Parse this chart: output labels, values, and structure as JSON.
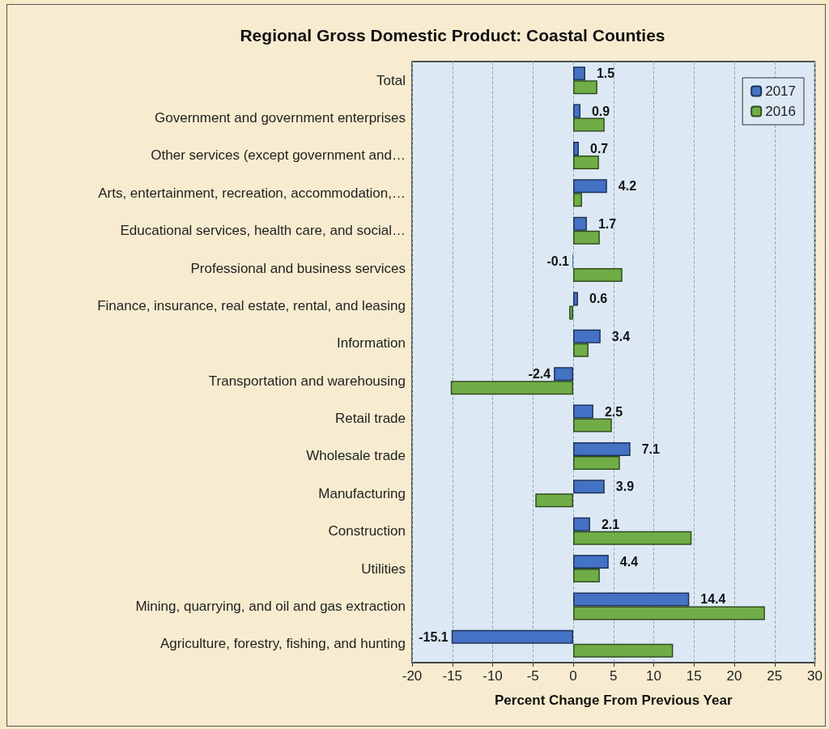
{
  "chart_data": {
    "type": "bar",
    "orientation": "horizontal",
    "title": "Regional Gross Domestic Product: Coastal Counties",
    "xlabel": "Percent Change From Previous Year",
    "categories": [
      "Total",
      "Government and government enterprises",
      "Other services (except government and…",
      "Arts, entertainment, recreation, accommodation,…",
      "Educational services, health care, and social…",
      "Professional and business services",
      "Finance, insurance, real estate, rental, and leasing",
      "Information",
      "Transportation and warehousing",
      "Retail trade",
      "Wholesale trade",
      "Manufacturing",
      "Construction",
      "Utilities",
      "Mining, quarrying, and oil and gas extraction",
      "Agriculture, forestry, fishing, and hunting"
    ],
    "series": [
      {
        "name": "2017",
        "color": "#4472c4",
        "values": [
          1.5,
          0.9,
          0.7,
          4.2,
          1.7,
          -0.1,
          0.6,
          3.4,
          -2.4,
          2.5,
          7.1,
          3.9,
          2.1,
          4.4,
          14.4,
          -15.1
        ],
        "value_labels": [
          "1.5",
          "0.9",
          "0.7",
          "4.2",
          "1.7",
          "-0.1",
          "0.6",
          "3.4",
          "-2.4",
          "2.5",
          "7.1",
          "3.9",
          "2.1",
          "4.4",
          "14.4",
          "-15.1"
        ]
      },
      {
        "name": "2016",
        "color": "#70ad47",
        "values": [
          3.0,
          3.9,
          3.2,
          1.1,
          3.3,
          6.1,
          -0.5,
          1.9,
          -15.2,
          4.8,
          5.8,
          -4.7,
          14.7,
          3.3,
          23.8,
          12.4
        ]
      }
    ],
    "xlim": [
      -20,
      30
    ],
    "xticks": [
      -20,
      -15,
      -10,
      -5,
      0,
      5,
      10,
      15,
      20,
      25,
      30
    ],
    "grid": "x",
    "legend": "top right"
  }
}
